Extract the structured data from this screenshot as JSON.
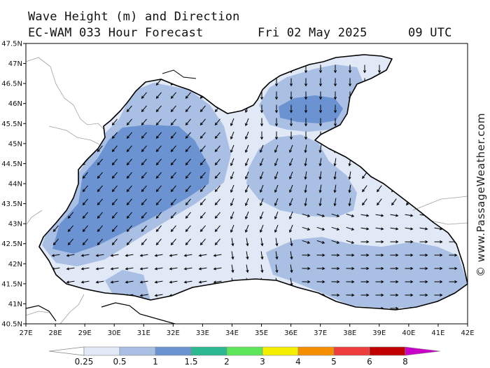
{
  "header": {
    "line1": "Wave Height (m) and Direction",
    "line2_left": "EC-WAM 033 Hour Forecast",
    "line2_date": "Fri 02 May 2025",
    "line2_time": "09 UTC"
  },
  "watermark": "© www.PassageWeather.com",
  "map": {
    "lat_labels": [
      "47.5N",
      "47N",
      "46.5N",
      "46N",
      "45.5N",
      "45N",
      "44.5N",
      "44N",
      "43.5N",
      "43N",
      "42.5N",
      "42N",
      "41.5N",
      "41N",
      "40.5N"
    ],
    "lon_labels": [
      "27E",
      "28E",
      "29E",
      "30E",
      "31E",
      "32E",
      "33E",
      "34E",
      "35E",
      "36E",
      "37E",
      "38E",
      "39E",
      "40E",
      "41E",
      "42E"
    ],
    "lat_range": [
      40.5,
      47.5
    ],
    "lon_range": [
      27,
      42
    ],
    "land_color": "#ffffff",
    "coast_color": "#000000",
    "border_color": "#a0a0a0"
  },
  "colorbar": {
    "labels": [
      "0.25",
      "0.5",
      "1",
      "1.5",
      "2",
      "3",
      "4",
      "5",
      "6",
      "8"
    ],
    "colors": [
      "#e1e8f6",
      "#a9bfe3",
      "#6b93d2",
      "#29b890",
      "#5ee65a",
      "#f5f000",
      "#f58f00",
      "#ee3d3d",
      "#c00000",
      "#c800c8"
    ],
    "left_arrow_color": "#ffffff"
  }
}
